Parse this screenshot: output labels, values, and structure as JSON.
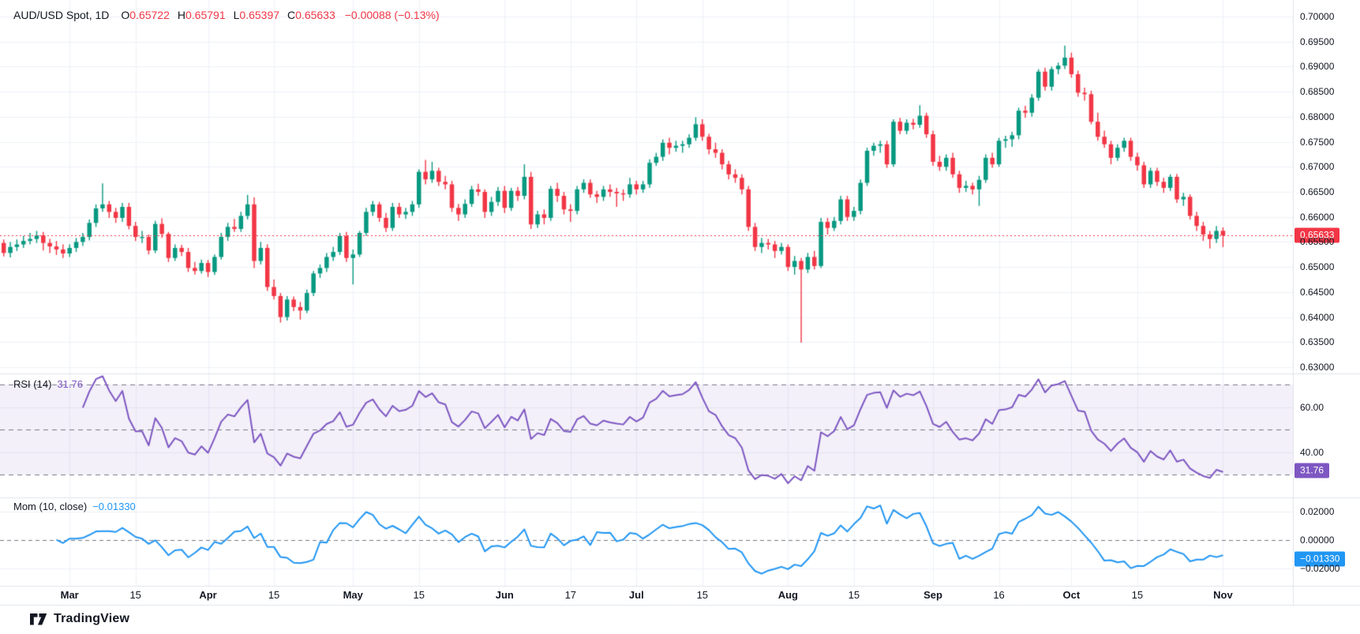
{
  "legend": {
    "symbol": "AUD/USD Spot, 1D",
    "o_label": "O",
    "o": "0.65722",
    "h_label": "H",
    "h": "0.65791",
    "l_label": "L",
    "l": "0.65397",
    "c_label": "C",
    "c": "0.65633",
    "change": "−0.00088 (−0.13%)"
  },
  "footer": {
    "brand": "TradingView"
  },
  "colors": {
    "up": "#089981",
    "down": "#F23645",
    "grid": "#eef1f8",
    "separator": "#e0e3eb",
    "dashed_guide": "#85889655",
    "dashed_dark": "#787b86",
    "text": "#131722",
    "rsi_line": "#7E57C2",
    "rsi_fill": "rgba(126,87,194,0.09)",
    "mom_line": "#2196F3",
    "last_price": "#F23645"
  },
  "chart_data": {
    "type": "candlestick",
    "title": "AUD/USD Spot, 1D",
    "interval": "1D",
    "grid": true,
    "price_axis": {
      "labels": [
        [
          "0.70000",
          0.7
        ],
        [
          "0.69500",
          0.695
        ],
        [
          "0.69000",
          0.69
        ],
        [
          "0.68500",
          0.685
        ],
        [
          "0.68000",
          0.68
        ],
        [
          "0.67500",
          0.675
        ],
        [
          "0.67000",
          0.67
        ],
        [
          "0.66500",
          0.665
        ],
        [
          "0.66000",
          0.66
        ],
        [
          "0.65500",
          0.655
        ],
        [
          "0.65000",
          0.65
        ],
        [
          "0.64500",
          0.645
        ],
        [
          "0.64000",
          0.64
        ],
        [
          "0.63500",
          0.635
        ],
        [
          "0.63000",
          0.63
        ]
      ],
      "ylim": [
        0.63,
        0.7
      ]
    },
    "last_price": {
      "value": 0.65633,
      "label": "0.65633"
    },
    "time_ticks": [
      [
        12,
        "Mar",
        1
      ],
      [
        22,
        "15",
        0
      ],
      [
        33,
        "Apr",
        1
      ],
      [
        43,
        "15",
        0
      ],
      [
        55,
        "May",
        1
      ],
      [
        65,
        "15",
        0
      ],
      [
        78,
        "Jun",
        1
      ],
      [
        88,
        "17",
        0
      ],
      [
        98,
        "Jul",
        1
      ],
      [
        108,
        "15",
        0
      ],
      [
        121,
        "Aug",
        1
      ],
      [
        131,
        "15",
        0
      ],
      [
        143,
        "Sep",
        1
      ],
      [
        153,
        "16",
        0
      ],
      [
        164,
        "Oct",
        1
      ],
      [
        174,
        "15",
        0
      ],
      [
        187,
        "Nov",
        1
      ]
    ],
    "indicators": {
      "rsi": {
        "title": "RSI (14)",
        "period": 14,
        "value": 31.76,
        "value_label": "31.76",
        "bands_dashed": [
          70,
          50,
          30
        ],
        "band_fill_range": [
          70,
          30
        ],
        "axis_labels": [
          [
            "60.00",
            60
          ],
          [
            "40.00",
            40
          ]
        ]
      },
      "mom": {
        "title": "Mom (10, close)",
        "period": 10,
        "value": -0.0133,
        "value_label": "−0.01330",
        "zero_line": 0,
        "axis_labels": [
          [
            "0.02000",
            0.02
          ],
          [
            "0.00000",
            0
          ],
          [
            "−0.02000",
            -0.02
          ]
        ]
      }
    },
    "candles": [
      [
        0.65,
        0.6542,
        0.6492,
        0.6533
      ],
      [
        0.6533,
        0.656,
        0.6525,
        0.6548
      ],
      [
        0.6548,
        0.6555,
        0.6521,
        0.6528
      ],
      [
        0.6528,
        0.655,
        0.6519,
        0.654
      ],
      [
        0.654,
        0.6555,
        0.6532,
        0.6545
      ],
      [
        0.6545,
        0.6562,
        0.6538,
        0.6552
      ],
      [
        0.6552,
        0.6568,
        0.6545,
        0.6556
      ],
      [
        0.6556,
        0.6572,
        0.6548,
        0.6563
      ],
      [
        0.6563,
        0.657,
        0.6533,
        0.6548
      ],
      [
        0.6548,
        0.6556,
        0.6528,
        0.6541
      ],
      [
        0.6541,
        0.6552,
        0.6524,
        0.6535
      ],
      [
        0.6535,
        0.6545,
        0.6518,
        0.6527
      ],
      [
        0.6527,
        0.6545,
        0.652,
        0.6538
      ],
      [
        0.6538,
        0.6558,
        0.653,
        0.655
      ],
      [
        0.655,
        0.6568,
        0.6542,
        0.656
      ],
      [
        0.656,
        0.6595,
        0.6553,
        0.6588
      ],
      [
        0.6588,
        0.6625,
        0.658,
        0.6617
      ],
      [
        0.6617,
        0.6667,
        0.661,
        0.6625
      ],
      [
        0.6625,
        0.6632,
        0.6598,
        0.661
      ],
      [
        0.661,
        0.6618,
        0.6588,
        0.6598
      ],
      [
        0.6598,
        0.6628,
        0.659,
        0.662
      ],
      [
        0.662,
        0.6628,
        0.6575,
        0.6582
      ],
      [
        0.6582,
        0.659,
        0.6552,
        0.656
      ],
      [
        0.656,
        0.6572,
        0.6548,
        0.656
      ],
      [
        0.656,
        0.6565,
        0.6525,
        0.6533
      ],
      [
        0.6533,
        0.6592,
        0.6528,
        0.6586
      ],
      [
        0.6586,
        0.6597,
        0.6558,
        0.6566
      ],
      [
        0.6566,
        0.657,
        0.651,
        0.6518
      ],
      [
        0.6518,
        0.6545,
        0.6512,
        0.6538
      ],
      [
        0.6538,
        0.6544,
        0.6522,
        0.653
      ],
      [
        0.653,
        0.6538,
        0.649,
        0.6498
      ],
      [
        0.6498,
        0.651,
        0.6485,
        0.6492
      ],
      [
        0.6492,
        0.6515,
        0.6487,
        0.6508
      ],
      [
        0.6508,
        0.6514,
        0.648,
        0.649
      ],
      [
        0.649,
        0.6525,
        0.6484,
        0.652
      ],
      [
        0.652,
        0.6568,
        0.6515,
        0.656
      ],
      [
        0.656,
        0.6588,
        0.6552,
        0.658
      ],
      [
        0.658,
        0.6596,
        0.657,
        0.6576
      ],
      [
        0.6576,
        0.661,
        0.657,
        0.6602
      ],
      [
        0.6602,
        0.6644,
        0.6595,
        0.6625
      ],
      [
        0.6625,
        0.6639,
        0.6498,
        0.6512
      ],
      [
        0.6512,
        0.655,
        0.6505,
        0.6538
      ],
      [
        0.6538,
        0.6545,
        0.6452,
        0.646
      ],
      [
        0.646,
        0.6475,
        0.6435,
        0.6442
      ],
      [
        0.6442,
        0.6448,
        0.6389,
        0.64
      ],
      [
        0.64,
        0.6442,
        0.6393,
        0.6435
      ],
      [
        0.6435,
        0.6441,
        0.6412,
        0.642
      ],
      [
        0.642,
        0.643,
        0.6395,
        0.6413
      ],
      [
        0.6413,
        0.6455,
        0.6408,
        0.6448
      ],
      [
        0.6448,
        0.6492,
        0.6442,
        0.6487
      ],
      [
        0.6487,
        0.6505,
        0.6478,
        0.6498
      ],
      [
        0.6498,
        0.6528,
        0.649,
        0.652
      ],
      [
        0.652,
        0.654,
        0.6512,
        0.653
      ],
      [
        0.653,
        0.6568,
        0.6524,
        0.6562
      ],
      [
        0.6562,
        0.657,
        0.651,
        0.6518
      ],
      [
        0.6518,
        0.6535,
        0.6465,
        0.6525
      ],
      [
        0.6525,
        0.6572,
        0.652,
        0.6568
      ],
      [
        0.6568,
        0.6618,
        0.6562,
        0.661
      ],
      [
        0.661,
        0.6632,
        0.6602,
        0.6625
      ],
      [
        0.6625,
        0.663,
        0.659,
        0.6598
      ],
      [
        0.6598,
        0.6608,
        0.657,
        0.6578
      ],
      [
        0.6578,
        0.6628,
        0.6572,
        0.662
      ],
      [
        0.662,
        0.6628,
        0.6598,
        0.6605
      ],
      [
        0.6605,
        0.6618,
        0.6596,
        0.661
      ],
      [
        0.661,
        0.6632,
        0.6602,
        0.6625
      ],
      [
        0.6625,
        0.6695,
        0.6618,
        0.669
      ],
      [
        0.669,
        0.6714,
        0.6665,
        0.6675
      ],
      [
        0.6675,
        0.671,
        0.6668,
        0.6692
      ],
      [
        0.6692,
        0.6698,
        0.6662,
        0.667
      ],
      [
        0.667,
        0.6682,
        0.6655,
        0.6665
      ],
      [
        0.6665,
        0.6672,
        0.661,
        0.6618
      ],
      [
        0.6618,
        0.6626,
        0.6592,
        0.6605
      ],
      [
        0.6605,
        0.6635,
        0.6598,
        0.6626
      ],
      [
        0.6626,
        0.6662,
        0.662,
        0.6655
      ],
      [
        0.6655,
        0.6666,
        0.6642,
        0.665
      ],
      [
        0.665,
        0.6655,
        0.6598,
        0.661
      ],
      [
        0.661,
        0.664,
        0.6602,
        0.663
      ],
      [
        0.663,
        0.666,
        0.6622,
        0.6652
      ],
      [
        0.6652,
        0.6662,
        0.6608,
        0.6618
      ],
      [
        0.6618,
        0.6658,
        0.6612,
        0.6652
      ],
      [
        0.6652,
        0.666,
        0.6632,
        0.6642
      ],
      [
        0.6642,
        0.6705,
        0.6635,
        0.668
      ],
      [
        0.668,
        0.669,
        0.6576,
        0.6585
      ],
      [
        0.6585,
        0.6612,
        0.6578,
        0.6605
      ],
      [
        0.6605,
        0.6615,
        0.6585,
        0.6598
      ],
      [
        0.6598,
        0.6662,
        0.6592,
        0.6656
      ],
      [
        0.6656,
        0.6668,
        0.663,
        0.6642
      ],
      [
        0.6642,
        0.665,
        0.6605,
        0.6615
      ],
      [
        0.6615,
        0.6625,
        0.659,
        0.6612
      ],
      [
        0.6612,
        0.6662,
        0.6605,
        0.6655
      ],
      [
        0.6655,
        0.6675,
        0.6648,
        0.6668
      ],
      [
        0.6668,
        0.6675,
        0.6638,
        0.6645
      ],
      [
        0.6645,
        0.6652,
        0.6628,
        0.664
      ],
      [
        0.664,
        0.6662,
        0.6632,
        0.6655
      ],
      [
        0.6655,
        0.6665,
        0.664,
        0.665
      ],
      [
        0.665,
        0.6658,
        0.662,
        0.6647
      ],
      [
        0.6647,
        0.6655,
        0.6632,
        0.6645
      ],
      [
        0.6645,
        0.6678,
        0.6638,
        0.6665
      ],
      [
        0.6665,
        0.6672,
        0.6645,
        0.6655
      ],
      [
        0.6655,
        0.6672,
        0.6648,
        0.6665
      ],
      [
        0.6665,
        0.6715,
        0.6658,
        0.6708
      ],
      [
        0.6708,
        0.6728,
        0.6702,
        0.672
      ],
      [
        0.672,
        0.6755,
        0.6712,
        0.6748
      ],
      [
        0.6748,
        0.6758,
        0.6725,
        0.6738
      ],
      [
        0.6738,
        0.6752,
        0.673,
        0.6742
      ],
      [
        0.6742,
        0.6752,
        0.6728,
        0.6745
      ],
      [
        0.6745,
        0.6765,
        0.6738,
        0.6758
      ],
      [
        0.6758,
        0.6799,
        0.6752,
        0.6785
      ],
      [
        0.6785,
        0.6795,
        0.6752,
        0.676
      ],
      [
        0.676,
        0.6766,
        0.6725,
        0.6735
      ],
      [
        0.6735,
        0.6748,
        0.6718,
        0.6728
      ],
      [
        0.6728,
        0.6735,
        0.6695,
        0.6705
      ],
      [
        0.6705,
        0.6712,
        0.6675,
        0.6685
      ],
      [
        0.6685,
        0.6695,
        0.6668,
        0.6678
      ],
      [
        0.6678,
        0.6685,
        0.6645,
        0.6655
      ],
      [
        0.6655,
        0.6662,
        0.6572,
        0.658
      ],
      [
        0.658,
        0.6588,
        0.6532,
        0.654
      ],
      [
        0.654,
        0.6558,
        0.6528,
        0.6548
      ],
      [
        0.6548,
        0.6556,
        0.6535,
        0.6545
      ],
      [
        0.6545,
        0.6552,
        0.6518,
        0.6532
      ],
      [
        0.6532,
        0.6548,
        0.6525,
        0.654
      ],
      [
        0.654,
        0.6545,
        0.6492,
        0.65
      ],
      [
        0.65,
        0.6522,
        0.6485,
        0.6512
      ],
      [
        0.6512,
        0.6518,
        0.6349,
        0.6495
      ],
      [
        0.6495,
        0.6528,
        0.6488,
        0.652
      ],
      [
        0.652,
        0.6532,
        0.6495,
        0.6502
      ],
      [
        0.6502,
        0.6598,
        0.6498,
        0.659
      ],
      [
        0.659,
        0.6598,
        0.6565,
        0.6578
      ],
      [
        0.6578,
        0.66,
        0.6572,
        0.6592
      ],
      [
        0.6592,
        0.6642,
        0.6585,
        0.6635
      ],
      [
        0.6635,
        0.6642,
        0.6592,
        0.66
      ],
      [
        0.66,
        0.662,
        0.6592,
        0.6612
      ],
      [
        0.6612,
        0.6675,
        0.6605,
        0.6668
      ],
      [
        0.6668,
        0.6738,
        0.6662,
        0.6732
      ],
      [
        0.6732,
        0.6748,
        0.6722,
        0.6742
      ],
      [
        0.6742,
        0.6752,
        0.6728,
        0.6745
      ],
      [
        0.6745,
        0.6752,
        0.6698,
        0.6705
      ],
      [
        0.6705,
        0.6795,
        0.67,
        0.679
      ],
      [
        0.679,
        0.6798,
        0.6765,
        0.6772
      ],
      [
        0.6772,
        0.6795,
        0.6765,
        0.6788
      ],
      [
        0.6788,
        0.6796,
        0.6775,
        0.6784
      ],
      [
        0.6784,
        0.6823,
        0.6778,
        0.6802
      ],
      [
        0.6802,
        0.6808,
        0.6758,
        0.6765
      ],
      [
        0.6765,
        0.6772,
        0.6702,
        0.671
      ],
      [
        0.671,
        0.6722,
        0.6692,
        0.67
      ],
      [
        0.67,
        0.6725,
        0.6692,
        0.6718
      ],
      [
        0.6718,
        0.6728,
        0.6678,
        0.6685
      ],
      [
        0.6685,
        0.6692,
        0.6648,
        0.6658
      ],
      [
        0.6658,
        0.6672,
        0.665,
        0.6662
      ],
      [
        0.6662,
        0.6668,
        0.6645,
        0.6655
      ],
      [
        0.6655,
        0.6682,
        0.6622,
        0.6674
      ],
      [
        0.6674,
        0.6725,
        0.6668,
        0.6718
      ],
      [
        0.6718,
        0.6728,
        0.6698,
        0.6705
      ],
      [
        0.6705,
        0.6758,
        0.67,
        0.6752
      ],
      [
        0.6752,
        0.6762,
        0.6738,
        0.6755
      ],
      [
        0.6755,
        0.677,
        0.674,
        0.6763
      ],
      [
        0.6763,
        0.6818,
        0.6755,
        0.6812
      ],
      [
        0.6812,
        0.6822,
        0.6798,
        0.6808
      ],
      [
        0.6808,
        0.6845,
        0.68,
        0.6838
      ],
      [
        0.6838,
        0.6895,
        0.6832,
        0.689
      ],
      [
        0.689,
        0.6898,
        0.6852,
        0.686
      ],
      [
        0.686,
        0.69,
        0.6852,
        0.6895
      ],
      [
        0.6895,
        0.6908,
        0.6885,
        0.6902
      ],
      [
        0.6902,
        0.6942,
        0.6895,
        0.6918
      ],
      [
        0.6918,
        0.6928,
        0.6878,
        0.6885
      ],
      [
        0.6885,
        0.6892,
        0.684,
        0.6848
      ],
      [
        0.6848,
        0.6858,
        0.6832,
        0.6845
      ],
      [
        0.6845,
        0.6852,
        0.6785,
        0.679
      ],
      [
        0.679,
        0.6808,
        0.6752,
        0.676
      ],
      [
        0.676,
        0.6772,
        0.6738,
        0.6745
      ],
      [
        0.6745,
        0.6752,
        0.6705,
        0.6718
      ],
      [
        0.6718,
        0.6745,
        0.6712,
        0.6738
      ],
      [
        0.6738,
        0.6758,
        0.673,
        0.6752
      ],
      [
        0.6752,
        0.6758,
        0.6712,
        0.672
      ],
      [
        0.672,
        0.6728,
        0.6692,
        0.6703
      ],
      [
        0.6703,
        0.671,
        0.6658,
        0.6665
      ],
      [
        0.6665,
        0.6698,
        0.6658,
        0.6692
      ],
      [
        0.6692,
        0.6698,
        0.6662,
        0.667
      ],
      [
        0.667,
        0.6678,
        0.6648,
        0.6658
      ],
      [
        0.6658,
        0.6685,
        0.6652,
        0.668
      ],
      [
        0.668,
        0.6686,
        0.6628,
        0.6635
      ],
      [
        0.6635,
        0.6648,
        0.6622,
        0.664
      ],
      [
        0.664,
        0.6645,
        0.6595,
        0.6602
      ],
      [
        0.6602,
        0.661,
        0.6572,
        0.6582
      ],
      [
        0.6582,
        0.659,
        0.6552,
        0.6565
      ],
      [
        0.6565,
        0.6572,
        0.6537,
        0.6556
      ],
      [
        0.6556,
        0.6582,
        0.6548,
        0.6572
      ],
      [
        0.65722,
        0.65791,
        0.65397,
        0.65633
      ]
    ]
  }
}
